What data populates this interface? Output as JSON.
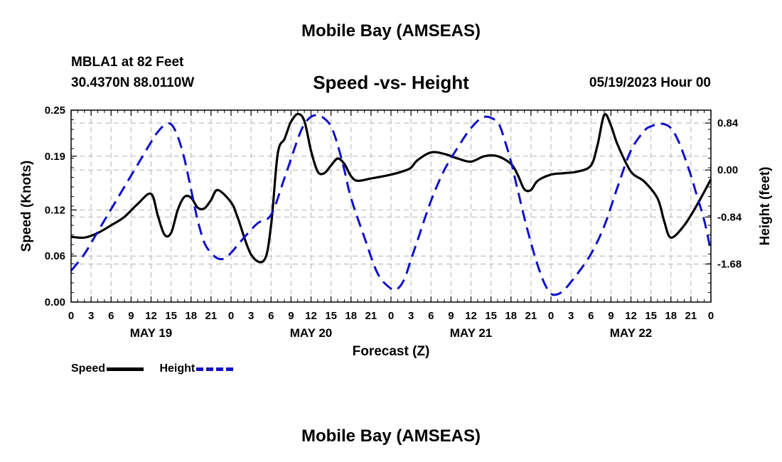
{
  "title": "Mobile Bay (AMSEAS)",
  "footer_title": "Mobile Bay (AMSEAS)",
  "station": "MBLA1 at 82 Feet",
  "location": "30.4370N  88.0110W",
  "subtitle": "Speed -vs- Height",
  "datetime": "05/19/2023 Hour 00",
  "legend": {
    "speed": "Speed",
    "height": "Height"
  },
  "colors": {
    "speed": "#000000",
    "height": "#1010c8",
    "grid": "#b4b4b4"
  },
  "chart_data": {
    "type": "line",
    "xlabel": "Forecast (Z)",
    "ylabel_left": "Speed (Knots)",
    "ylabel_right": "Height (feet)",
    "xlim": [
      0,
      96
    ],
    "ylim_left": [
      0,
      0.25
    ],
    "ylim_right": [
      -2.36,
      1.07
    ],
    "grid": true,
    "x_tick_labels": [
      "0",
      "3",
      "6",
      "9",
      "12",
      "15",
      "18",
      "21",
      "0",
      "3",
      "6",
      "9",
      "12",
      "15",
      "18",
      "21",
      "0",
      "3",
      "6",
      "9",
      "12",
      "15",
      "18",
      "21",
      "0",
      "3",
      "6",
      "9",
      "12",
      "15",
      "18",
      "21",
      "0"
    ],
    "day_labels": [
      {
        "hour": 12,
        "label": "MAY 19"
      },
      {
        "hour": 36,
        "label": "MAY 20"
      },
      {
        "hour": 60,
        "label": "MAY 21"
      },
      {
        "hour": 84,
        "label": "MAY 22"
      }
    ],
    "y_left_ticks": [
      0.0,
      0.06,
      0.12,
      0.19,
      0.25
    ],
    "y_left_tick_labels": [
      "0.00",
      "0.06",
      "0.12",
      "0.19",
      "0.25"
    ],
    "y_right_ticks": [
      -1.68,
      -0.84,
      0.0,
      0.84
    ],
    "y_right_tick_labels": [
      "-1.68",
      "-0.84",
      "0.00",
      "0.84"
    ],
    "series": [
      {
        "name": "Speed",
        "axis": "left",
        "x": [
          0,
          2,
          4,
          6,
          8,
          10,
          12,
          13,
          14,
          15,
          16,
          17,
          18,
          19,
          20,
          21,
          22,
          24,
          25,
          27,
          29,
          30,
          31,
          32,
          32.5,
          33,
          34,
          35,
          36,
          37,
          38,
          39,
          40,
          41,
          42,
          43,
          45,
          48,
          50,
          51,
          52,
          54,
          56,
          58,
          60,
          62,
          64,
          66,
          67,
          68,
          69,
          70,
          72,
          74,
          76,
          78,
          79,
          80,
          81,
          82,
          84,
          86,
          88,
          89,
          90,
          92,
          94,
          96
        ],
        "y": [
          0.085,
          0.084,
          0.09,
          0.1,
          0.111,
          0.128,
          0.141,
          0.113,
          0.088,
          0.09,
          0.12,
          0.137,
          0.136,
          0.123,
          0.122,
          0.133,
          0.146,
          0.13,
          0.11,
          0.062,
          0.055,
          0.1,
          0.193,
          0.212,
          0.224,
          0.235,
          0.245,
          0.236,
          0.197,
          0.17,
          0.168,
          0.178,
          0.187,
          0.18,
          0.164,
          0.158,
          0.161,
          0.166,
          0.171,
          0.175,
          0.185,
          0.195,
          0.193,
          0.187,
          0.183,
          0.19,
          0.19,
          0.18,
          0.166,
          0.147,
          0.146,
          0.158,
          0.166,
          0.168,
          0.17,
          0.178,
          0.205,
          0.244,
          0.23,
          0.205,
          0.17,
          0.157,
          0.135,
          0.105,
          0.084,
          0.1,
          0.128,
          0.16
        ]
      },
      {
        "name": "Height",
        "axis": "right",
        "x": [
          0,
          2,
          4,
          6,
          8,
          10,
          12,
          13,
          14,
          15,
          16,
          17,
          18,
          19,
          20,
          21,
          22,
          23,
          24,
          26,
          28,
          30,
          32,
          34,
          35,
          36,
          37,
          38,
          39,
          40,
          41,
          42,
          44,
          46,
          48,
          49,
          50,
          51,
          52,
          54,
          56,
          58,
          60,
          62,
          64,
          65,
          66,
          67,
          68,
          69,
          70,
          71,
          72,
          73,
          74,
          75,
          76,
          78,
          80,
          82,
          84,
          86,
          87,
          88,
          89,
          90,
          91,
          92,
          93,
          94,
          95,
          96
        ],
        "y": [
          -1.8,
          -1.5,
          -1.1,
          -0.7,
          -0.3,
          0.1,
          0.5,
          0.68,
          0.8,
          0.82,
          0.6,
          0.2,
          -0.35,
          -0.9,
          -1.3,
          -1.48,
          -1.58,
          -1.58,
          -1.48,
          -1.2,
          -0.95,
          -0.8,
          -0.15,
          0.55,
          0.82,
          0.95,
          0.98,
          0.92,
          0.78,
          0.45,
          0.0,
          -0.5,
          -1.2,
          -1.85,
          -2.12,
          -2.12,
          -1.95,
          -1.6,
          -1.25,
          -0.55,
          0.0,
          0.4,
          0.75,
          0.95,
          0.85,
          0.55,
          0.15,
          -0.35,
          -0.85,
          -1.3,
          -1.7,
          -2.02,
          -2.21,
          -2.22,
          -2.14,
          -2.0,
          -1.85,
          -1.5,
          -1.0,
          -0.3,
          0.35,
          0.7,
          0.78,
          0.82,
          0.82,
          0.75,
          0.55,
          0.25,
          -0.1,
          -0.5,
          -0.9,
          -1.45
        ]
      }
    ]
  }
}
